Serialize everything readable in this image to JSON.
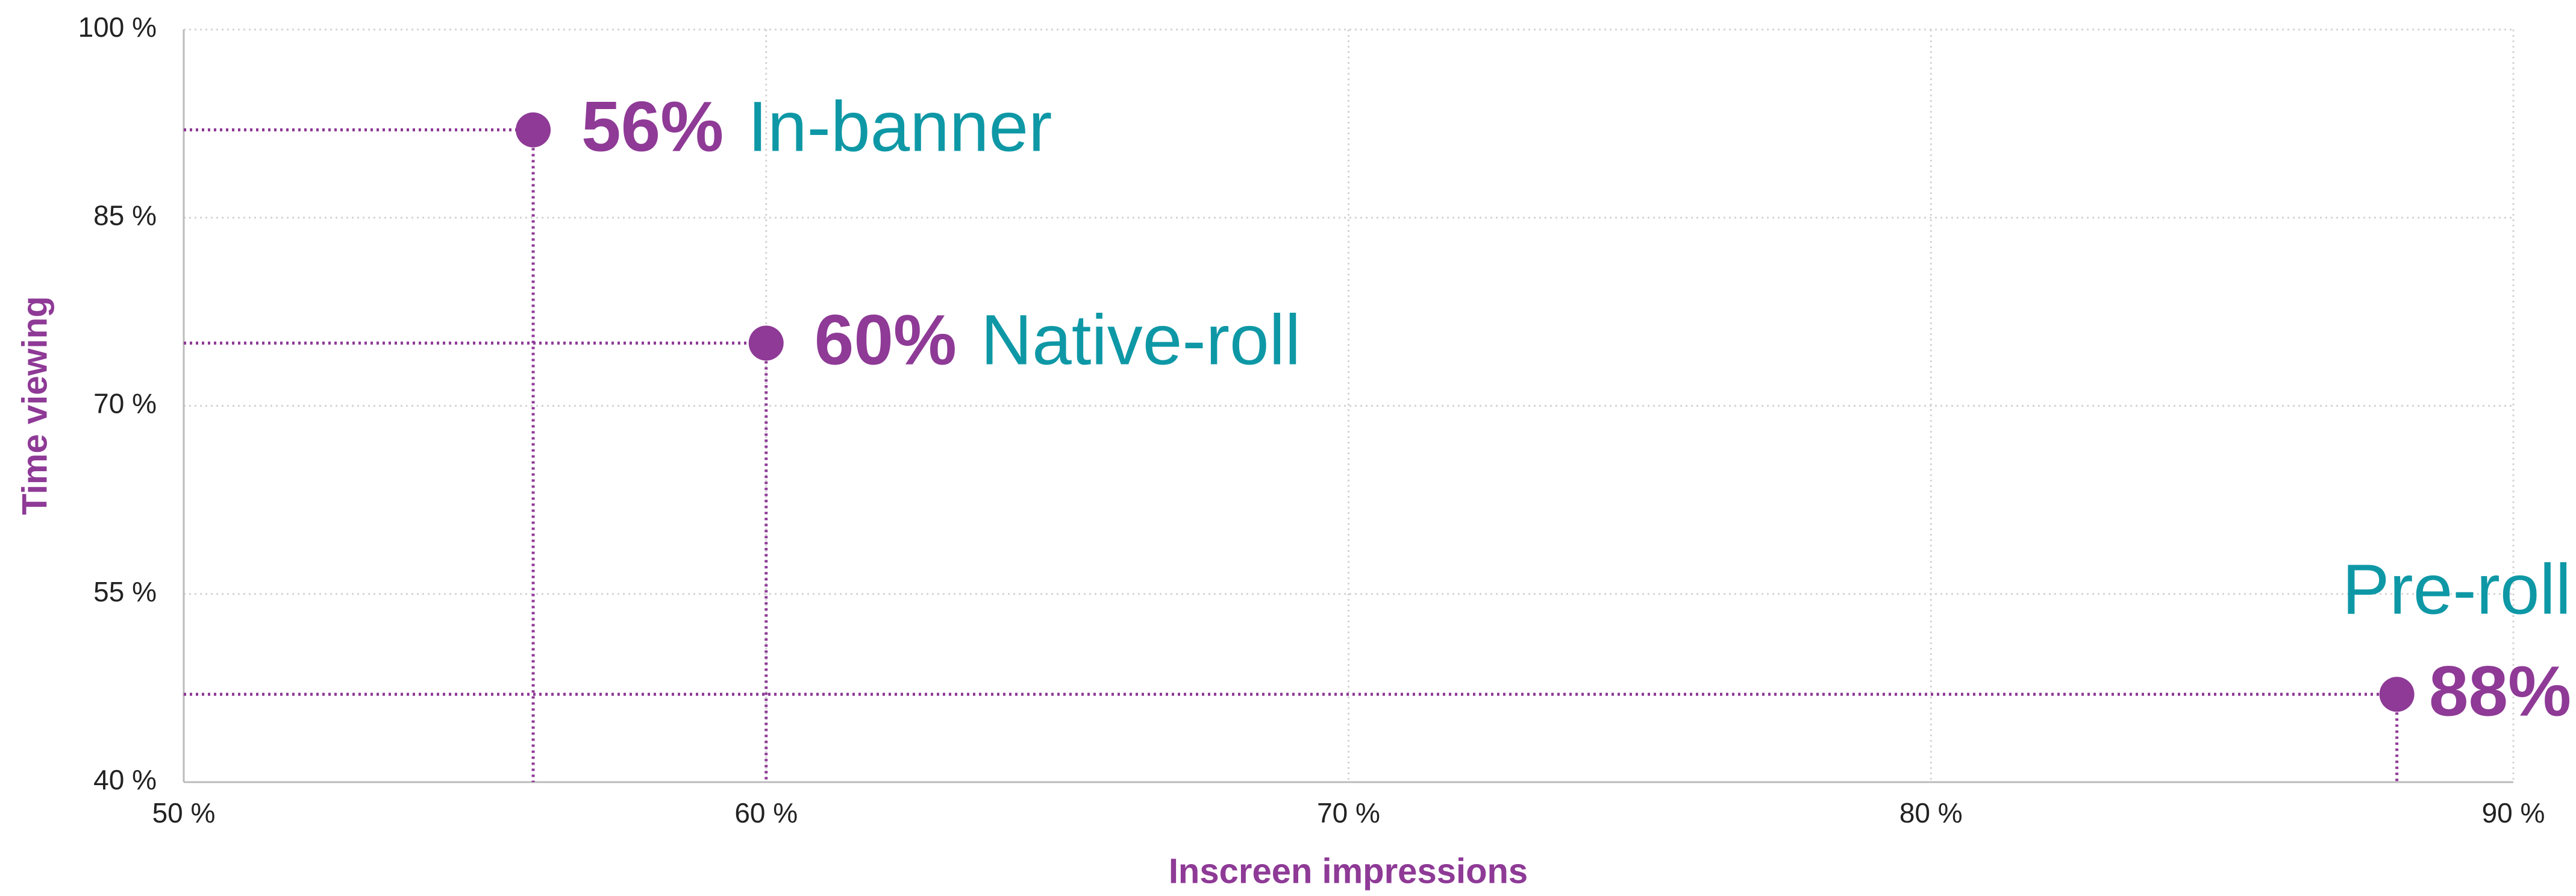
{
  "chart_data": {
    "type": "scatter",
    "xlabel": "Inscreen impressions",
    "ylabel": "Time viewing",
    "x": [
      56,
      60,
      88
    ],
    "values": [
      92,
      75,
      47
    ],
    "point_names": [
      "In-banner",
      "Native-roll",
      "Pre-roll"
    ],
    "x_value_labels": [
      "56%",
      "60%",
      "88%"
    ],
    "color": "#8e3a96",
    "name_color": "#0e98a6",
    "xlim": [
      50,
      90
    ],
    "xticks": [
      {
        "value": 50,
        "label": "50 %"
      },
      {
        "value": 60,
        "label": "60 %"
      },
      {
        "value": 70,
        "label": "70 %"
      },
      {
        "value": 80,
        "label": "80 %"
      },
      {
        "value": 90,
        "label": "90 %"
      }
    ],
    "ylim": [
      40,
      100
    ],
    "yticks": [
      {
        "value": 40,
        "label": "40 %"
      },
      {
        "value": 55,
        "label": "55 %"
      },
      {
        "value": 70,
        "label": "70 %"
      },
      {
        "value": 85,
        "label": "85 %"
      },
      {
        "value": 100,
        "label": "100 %"
      }
    ],
    "grid": true
  }
}
